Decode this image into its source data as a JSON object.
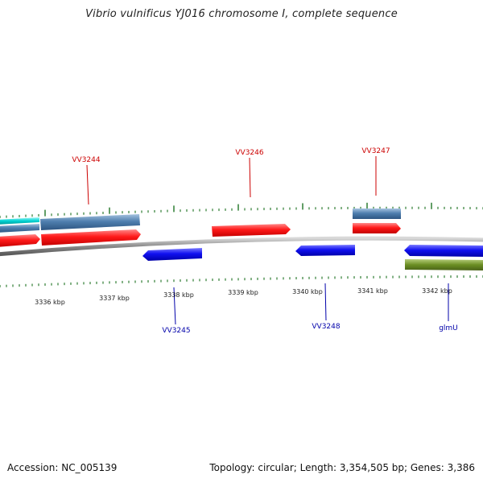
{
  "title": "Vibrio vulnificus YJ016 chromosome I, complete sequence",
  "footer": {
    "accession": "Accession: NC_005139",
    "stats": "Topology: circular; Length: 3,354,505 bp; Genes: 3,386"
  },
  "colors": {
    "backbone": "#808080",
    "ticks": "#2e7d32",
    "red_gene": "#ff0000",
    "blue_gene": "#0000ee",
    "steel_gene": "#4f7faf",
    "cyan_gene": "#00d2d2",
    "olive_gene": "#6b8e23",
    "top_label": "#cc0000",
    "bottom_label": "#0000aa"
  },
  "scale_labels": [
    "3336 kbp",
    "3337 kbp",
    "3338 kbp",
    "3339 kbp",
    "3340 kbp",
    "3341 kbp",
    "3342 kbp"
  ],
  "gene_labels": {
    "top": [
      "VV3244",
      "VV3246",
      "VV3247"
    ],
    "bottom": [
      "VV3245",
      "VV3248",
      "glmU"
    ]
  }
}
